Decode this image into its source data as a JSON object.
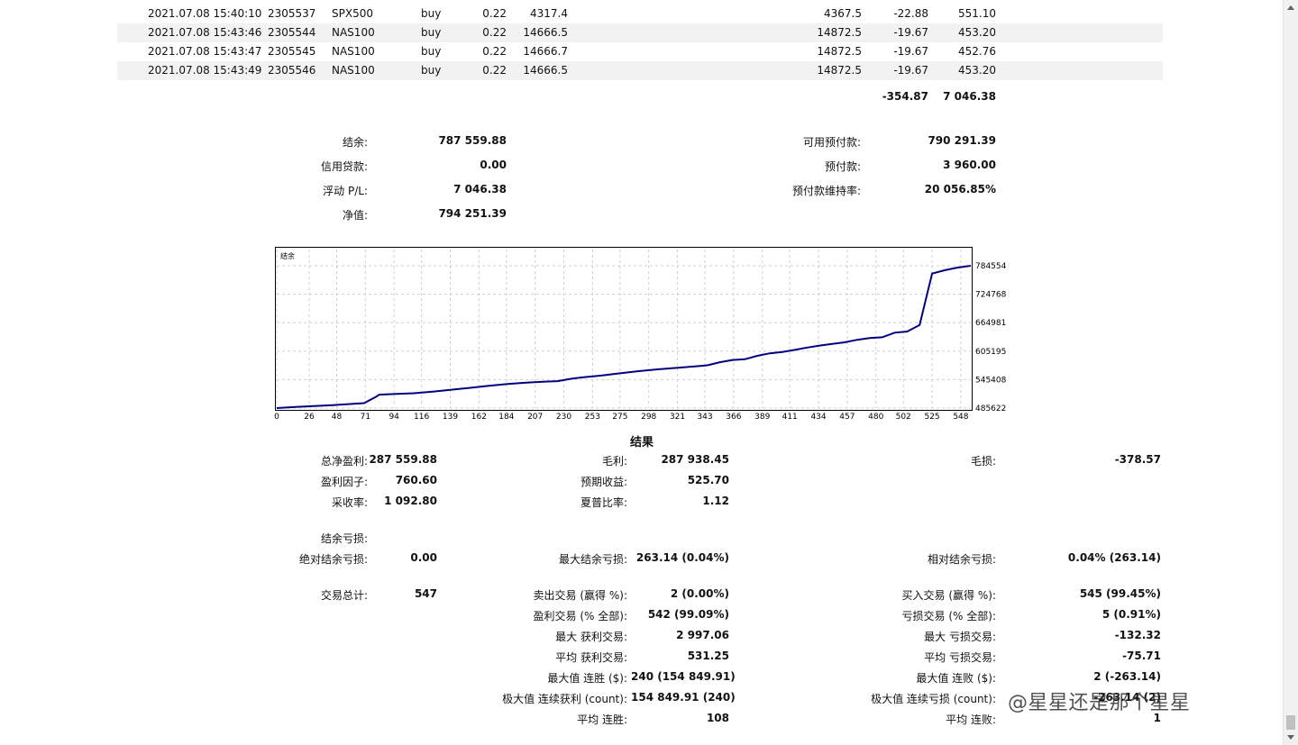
{
  "trades": [
    {
      "time": "2021.07.08 15:40:10",
      "ticket": "2305537",
      "symbol": "SPX500",
      "type": "buy",
      "volume": "0.22",
      "open_price": "4317.4",
      "close_price": "4367.5",
      "swap": "-22.88",
      "profit": "551.10"
    },
    {
      "time": "2021.07.08 15:43:46",
      "ticket": "2305544",
      "symbol": "NAS100",
      "type": "buy",
      "volume": "0.22",
      "open_price": "14666.5",
      "close_price": "14872.5",
      "swap": "-19.67",
      "profit": "453.20"
    },
    {
      "time": "2021.07.08 15:43:47",
      "ticket": "2305545",
      "symbol": "NAS100",
      "type": "buy",
      "volume": "0.22",
      "open_price": "14666.7",
      "close_price": "14872.5",
      "swap": "-19.67",
      "profit": "452.76"
    },
    {
      "time": "2021.07.08 15:43:49",
      "ticket": "2305546",
      "symbol": "NAS100",
      "type": "buy",
      "volume": "0.22",
      "open_price": "14666.5",
      "close_price": "14872.5",
      "swap": "-19.67",
      "profit": "453.20"
    }
  ],
  "totals": {
    "swap": "-354.87",
    "profit": "7 046.38"
  },
  "account_left": [
    {
      "label": "结余:",
      "value": "787 559.88"
    },
    {
      "label": "信用贷款:",
      "value": "0.00"
    },
    {
      "label": "浮动 P/L:",
      "value": "7 046.38"
    },
    {
      "label": "净值:",
      "value": "794 251.39"
    }
  ],
  "account_right": [
    {
      "label": "可用预付款:",
      "value": "790 291.39"
    },
    {
      "label": "预付款:",
      "value": "3 960.00"
    },
    {
      "label": "预付款维持率:",
      "value": "20 056.85%"
    }
  ],
  "chart_data": {
    "type": "line",
    "title": "结余",
    "x_ticks": [
      "0",
      "26",
      "48",
      "71",
      "94",
      "116",
      "139",
      "162",
      "184",
      "207",
      "230",
      "253",
      "275",
      "298",
      "321",
      "343",
      "366",
      "389",
      "411",
      "434",
      "457",
      "480",
      "502",
      "525",
      "548"
    ],
    "y_ticks": [
      "784554",
      "724768",
      "664981",
      "605195",
      "545408",
      "485622"
    ],
    "xlim": [
      0,
      556
    ],
    "ylim": [
      485622,
      784554
    ],
    "grid": true,
    "series": [
      {
        "values": [
          [
            0,
            485622
          ],
          [
            15,
            487900
          ],
          [
            30,
            489700
          ],
          [
            45,
            491900
          ],
          [
            60,
            494400
          ],
          [
            70,
            496100
          ],
          [
            80,
            510000
          ],
          [
            82,
            513800
          ],
          [
            94,
            515100
          ],
          [
            110,
            516800
          ],
          [
            125,
            520300
          ],
          [
            140,
            524300
          ],
          [
            155,
            528200
          ],
          [
            170,
            532500
          ],
          [
            185,
            536200
          ],
          [
            200,
            539200
          ],
          [
            215,
            541300
          ],
          [
            225,
            542100
          ],
          [
            235,
            547000
          ],
          [
            245,
            550100
          ],
          [
            260,
            553900
          ],
          [
            275,
            558700
          ],
          [
            290,
            563100
          ],
          [
            305,
            566900
          ],
          [
            320,
            570000
          ],
          [
            335,
            573200
          ],
          [
            345,
            575400
          ],
          [
            355,
            582000
          ],
          [
            365,
            586700
          ],
          [
            375,
            588200
          ],
          [
            385,
            595400
          ],
          [
            395,
            600600
          ],
          [
            405,
            603400
          ],
          [
            415,
            607900
          ],
          [
            425,
            612800
          ],
          [
            435,
            616900
          ],
          [
            445,
            620400
          ],
          [
            455,
            623700
          ],
          [
            465,
            629000
          ],
          [
            475,
            632700
          ],
          [
            485,
            634300
          ],
          [
            495,
            643900
          ],
          [
            505,
            646400
          ],
          [
            515,
            660000
          ],
          [
            525,
            768000
          ],
          [
            535,
            775000
          ],
          [
            545,
            780500
          ],
          [
            556,
            784554
          ]
        ],
        "color": "#000080"
      }
    ]
  },
  "results_title": "结果",
  "summary": [
    {
      "label": "总净盈利:",
      "value": "287 559.88"
    },
    {
      "label": "盈利因子:",
      "value": "760.60"
    },
    {
      "label": "采收率:",
      "value": "1 092.80"
    }
  ],
  "summary_mid": [
    {
      "label": "毛利:",
      "value": "287 938.45"
    },
    {
      "label": "预期收益:",
      "value": "525.70"
    },
    {
      "label": "夏普比率:",
      "value": "1.12"
    }
  ],
  "gross_loss": {
    "label": "毛损:",
    "value": "-378.57"
  },
  "drawdown": {
    "header": "结余亏损:",
    "abs_label": "绝对结余亏损:",
    "abs_value": "0.00",
    "max_label": "最大结余亏损:",
    "max_value": "263.14 (0.04%)",
    "rel_label": "相对结余亏损:",
    "rel_value": "0.04% (263.14)"
  },
  "trades_total": {
    "label": "交易总计:",
    "value": "547"
  },
  "stats_mid": [
    {
      "label": "卖出交易 (赢得 %):",
      "value": "2 (0.00%)"
    },
    {
      "label": "盈利交易 (% 全部):",
      "value": "542 (99.09%)"
    },
    {
      "label": "最大 获利交易:",
      "value": "2 997.06"
    },
    {
      "label": "平均 获利交易:",
      "value": "531.25"
    },
    {
      "label": "最大值 连胜 ($):",
      "value": "240 (154 849.91)"
    },
    {
      "label": "极大值 连续获利 (count):",
      "value": "154 849.91 (240)"
    },
    {
      "label": "平均 连胜:",
      "value": "108"
    }
  ],
  "stats_right": [
    {
      "label": "买入交易 (赢得 %):",
      "value": "545 (99.45%)"
    },
    {
      "label": "亏损交易 (% 全部):",
      "value": "5 (0.91%)"
    },
    {
      "label": "最大 亏损交易:",
      "value": "-132.32"
    },
    {
      "label": "平均 亏损交易:",
      "value": "-75.71"
    },
    {
      "label": "最大值 连败 ($):",
      "value": "2 (-263.14)"
    },
    {
      "label": "极大值 连续亏损 (count):",
      "value": "-263.14 (2)"
    },
    {
      "label": "平均 连败:",
      "value": "1"
    }
  ],
  "watermark": "@星星还是那个星星"
}
